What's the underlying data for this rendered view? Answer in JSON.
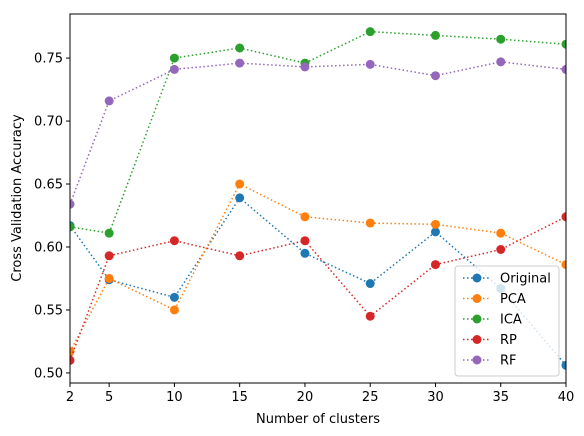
{
  "chart_data": {
    "type": "line",
    "title": "",
    "xlabel": "Number of clusters",
    "ylabel": "Cross Validation Accuracy",
    "x": [
      2,
      5,
      10,
      15,
      20,
      25,
      30,
      35,
      40
    ],
    "xlim": [
      2,
      40
    ],
    "ylim": [
      0.492,
      0.785
    ],
    "xticks": [
      2,
      5,
      10,
      15,
      20,
      25,
      30,
      35,
      40
    ],
    "yticks": [
      0.5,
      0.55,
      0.6,
      0.65,
      0.7,
      0.75
    ],
    "ytick_labels": [
      "0.50",
      "0.55",
      "0.60",
      "0.65",
      "0.70",
      "0.75"
    ],
    "grid": false,
    "line_style": "dotted",
    "marker": "circle",
    "legend_position": "bottom-right",
    "series": [
      {
        "name": "Original",
        "color": "#1f77b4",
        "values": [
          0.617,
          0.574,
          0.56,
          0.639,
          0.595,
          0.571,
          0.612,
          0.567,
          0.506
        ]
      },
      {
        "name": "PCA",
        "color": "#ff7f0e",
        "values": [
          0.517,
          0.575,
          0.55,
          0.65,
          0.624,
          0.619,
          0.618,
          0.611,
          0.586
        ]
      },
      {
        "name": "ICA",
        "color": "#2ca02c",
        "values": [
          0.616,
          0.611,
          0.75,
          0.758,
          0.746,
          0.771,
          0.768,
          0.765,
          0.761
        ]
      },
      {
        "name": "RP",
        "color": "#d62728",
        "values": [
          0.51,
          0.593,
          0.605,
          0.593,
          0.605,
          0.545,
          0.586,
          0.598,
          0.624
        ]
      },
      {
        "name": "RF",
        "color": "#9467bd",
        "values": [
          0.634,
          0.716,
          0.741,
          0.746,
          0.743,
          0.745,
          0.736,
          0.747,
          0.741
        ]
      }
    ]
  }
}
